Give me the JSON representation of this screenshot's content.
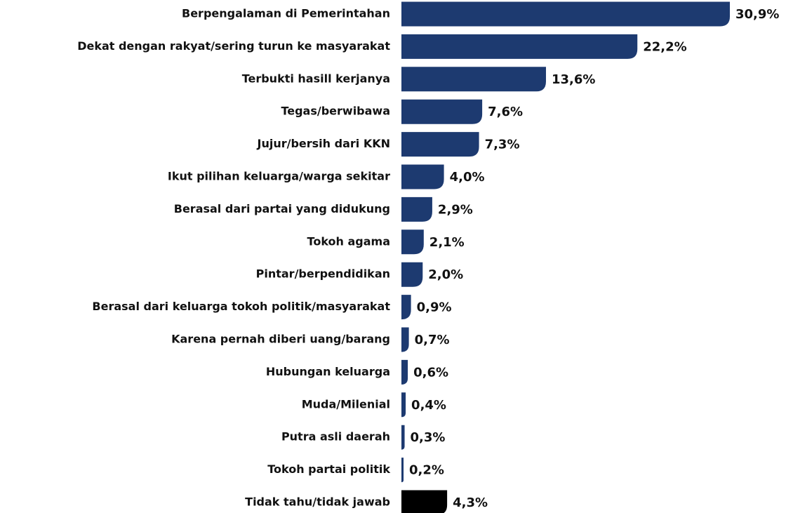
{
  "chart_data": {
    "type": "barh",
    "categories": [
      "Berpengalaman di Pemerintahan",
      "Dekat dengan rakyat/sering turun ke masyarakat",
      "Terbukti hasill kerjanya",
      "Tegas/berwibawa",
      "Jujur/bersih dari KKN",
      "Ikut pilihan keluarga/warga sekitar",
      "Berasal dari partai yang didukung",
      "Tokoh agama",
      "Pintar/berpendidikan",
      "Berasal dari keluarga tokoh politik/masyarakat",
      "Karena pernah diberi uang/barang",
      "Hubungan keluarga",
      "Muda/Milenial",
      "Putra asli daerah",
      "Tokoh partai politik",
      "Tidak tahu/tidak jawab"
    ],
    "values": [
      30.9,
      22.2,
      13.6,
      7.6,
      7.3,
      4.0,
      2.9,
      2.1,
      2.0,
      0.9,
      0.7,
      0.6,
      0.4,
      0.3,
      0.2,
      4.3
    ],
    "value_labels": [
      "30,9%",
      "22,2%",
      "13,6%",
      "7,6%",
      "7,3%",
      "4,0%",
      "2,9%",
      "2,1%",
      "2,0%",
      "0,9%",
      "0,7%",
      "0,6%",
      "0,4%",
      "0,3%",
      "0,2%",
      "4,3%"
    ],
    "colors": [
      "#1d3a70",
      "#1d3a70",
      "#1d3a70",
      "#1d3a70",
      "#1d3a70",
      "#1d3a70",
      "#1d3a70",
      "#1d3a70",
      "#1d3a70",
      "#1d3a70",
      "#1d3a70",
      "#1d3a70",
      "#1d3a70",
      "#1d3a70",
      "#1d3a70",
      "#000000"
    ]
  }
}
